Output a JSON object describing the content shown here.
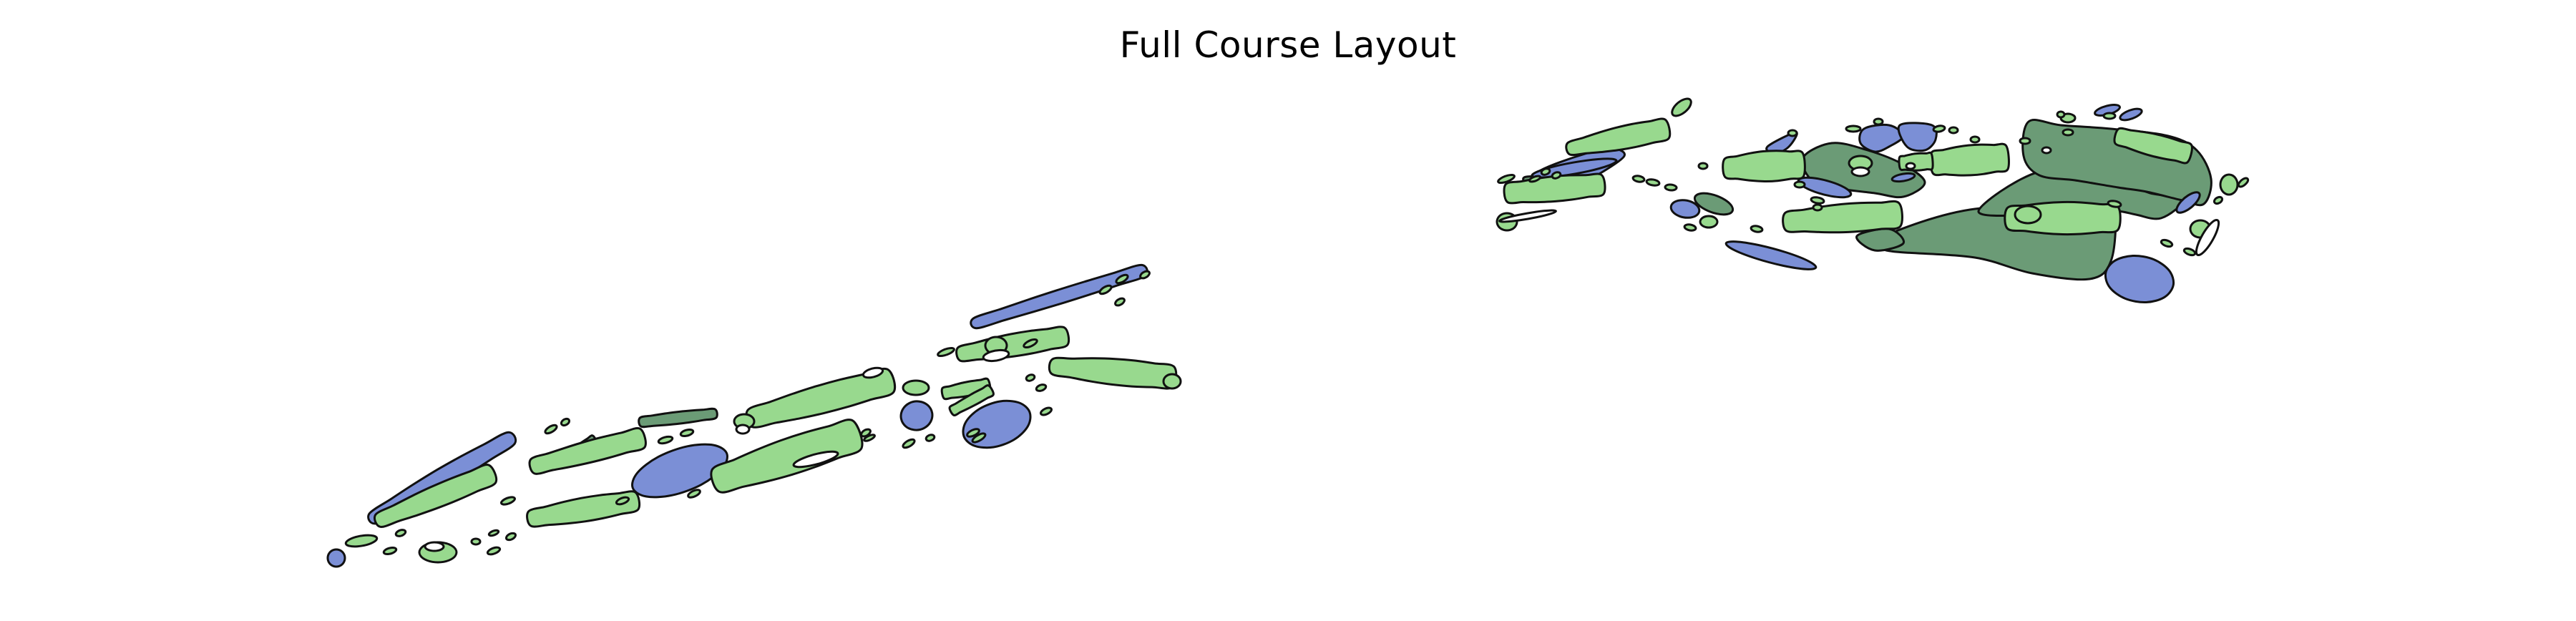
{
  "title": "Full Course Layout",
  "colors": {
    "fairway": "#98d98e",
    "rough": "#6b9b76",
    "water": "#7b8fd6",
    "sand": "#ffffff",
    "outline": "#111111"
  },
  "feature_types": [
    "fairway",
    "rough",
    "water",
    "sand"
  ]
}
